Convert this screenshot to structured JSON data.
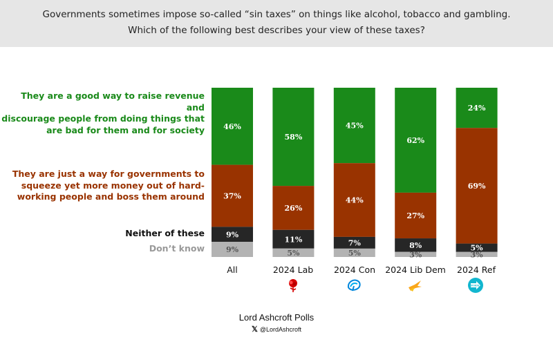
{
  "header": {
    "question_line1": "Governments sometimes impose so-called “sin taxes” on things like alcohol, tobacco and gambling.",
    "question_line2": "Which of the following best describes your view of these taxes?"
  },
  "legend": {
    "good_way": [
      "They are a good way to raise revenue and",
      "discourage people from doing things that",
      "are bad for them and for society"
    ],
    "squeeze": [
      "They are just a way for governments to",
      "squeeze yet more money out of hard-",
      "working people and boss them around"
    ],
    "neither": "Neither of these",
    "dont_know": "Don’t know"
  },
  "colors": {
    "good_way": "#1a8a1a",
    "squeeze": "#993300",
    "neither": "#262626",
    "dont_know": "#b3b3b3"
  },
  "chart_data": {
    "type": "bar",
    "stacked": true,
    "normalized": true,
    "categories": [
      "All",
      "2024 Lab",
      "2024 Con",
      "2024 Lib Dem",
      "2024 Ref"
    ],
    "series": [
      {
        "name": "They are a good way to raise revenue and discourage people from doing things that are bad for them and for society",
        "values": [
          46,
          58,
          45,
          62,
          24
        ]
      },
      {
        "name": "They are just a way for governments to squeeze yet more money out of hard-working people and boss them around",
        "values": [
          37,
          26,
          44,
          27,
          69
        ]
      },
      {
        "name": "Neither of these",
        "values": [
          9,
          11,
          7,
          8,
          5
        ]
      },
      {
        "name": "Don’t know",
        "values": [
          9,
          5,
          5,
          3,
          3
        ]
      }
    ],
    "labels": [
      [
        "46%",
        "58%",
        "45%",
        "62%",
        "24%"
      ],
      [
        "37%",
        "26%",
        "44%",
        "27%",
        "69%"
      ],
      [
        "9%",
        "11%",
        "7%",
        "8%",
        "5%"
      ],
      [
        "9%",
        "5%",
        "5%",
        "3%",
        "3%"
      ]
    ]
  },
  "party_icons": [
    "labour-rose-icon",
    "conservative-tree-icon",
    "libdem-bird-icon",
    "reform-arrow-icon"
  ],
  "footer": {
    "title": "Lord Ashcroft Polls",
    "x_glyph": "𝕏",
    "handle": "@LordAshcroft"
  }
}
